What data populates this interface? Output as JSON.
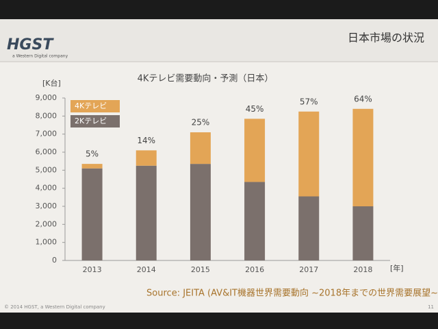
{
  "header": {
    "logo": "HGST",
    "logo_tagline": "a Western Digital company",
    "slide_title": "日本市場の状況"
  },
  "chart_data": {
    "type": "stacked_bar",
    "title": "4Kテレビ需要動向・予測（日本）",
    "y_unit_label": "[K台]",
    "x_unit_label": "[年]",
    "categories": [
      "2013",
      "2014",
      "2015",
      "2016",
      "2017",
      "2018"
    ],
    "series": [
      {
        "name": "4Kテレビ",
        "color": "#e3a556",
        "values": [
          250,
          850,
          1750,
          3500,
          4700,
          5400
        ]
      },
      {
        "name": "2Kテレビ",
        "color": "#7b706c",
        "values": [
          5100,
          5250,
          5350,
          4350,
          3550,
          3000
        ]
      }
    ],
    "annotations": [
      "5%",
      "14%",
      "25%",
      "45%",
      "57%",
      "64%"
    ],
    "ylim": [
      0,
      9000
    ],
    "yticks": [
      0,
      {
        "value": 1000,
        "label": "1,000"
      },
      {
        "value": 2000,
        "label": "2,000"
      },
      {
        "value": 3000,
        "label": "3,000"
      },
      {
        "value": 4000,
        "label": "4,000"
      },
      {
        "value": 5000,
        "label": "5,000"
      },
      {
        "value": 6000,
        "label": "6,000"
      },
      {
        "value": 7000,
        "label": "7,000"
      },
      {
        "value": 8000,
        "label": "8,000"
      },
      {
        "value": 9000,
        "label": "9,000"
      }
    ],
    "legend": "top-left"
  },
  "source": "Source: JEITA (AV&IT機器世界需要動向 ~2018年までの世界需要展望~",
  "footer": {
    "copyright": "© 2014 HGST, a Western Digital company",
    "page": "11"
  }
}
